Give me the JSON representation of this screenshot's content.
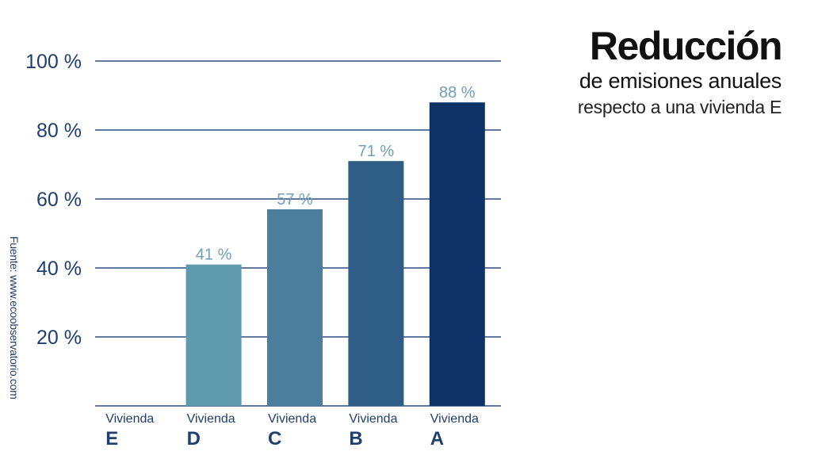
{
  "title": {
    "main": "Reducción",
    "sub": "de emisiones anuales",
    "sub2": "respecto a una vivienda E"
  },
  "source": "Fuente: www.ecoobservatorio.com",
  "colors": {
    "axis_text": "#1f3f6f",
    "grid": "#2a4d80",
    "value_label": "#6f9fb8"
  },
  "chart_data": {
    "type": "bar",
    "categories": [
      "E",
      "D",
      "C",
      "B",
      "A"
    ],
    "category_prefix": "Vivienda",
    "values": [
      0,
      41,
      57,
      71,
      88
    ],
    "value_labels": [
      "",
      "41 %",
      "57 %",
      "71 %",
      "88 %"
    ],
    "bar_colors": [
      "#ffffff",
      "#5f9bad",
      "#4a7e9c",
      "#2e5d85",
      "#0d3366"
    ],
    "yticks": [
      20,
      40,
      60,
      80,
      100
    ],
    "ytick_labels": [
      "20 %",
      "40 %",
      "60 %",
      "80 %",
      "100 %"
    ],
    "ylim": [
      0,
      100
    ],
    "grid": true
  }
}
